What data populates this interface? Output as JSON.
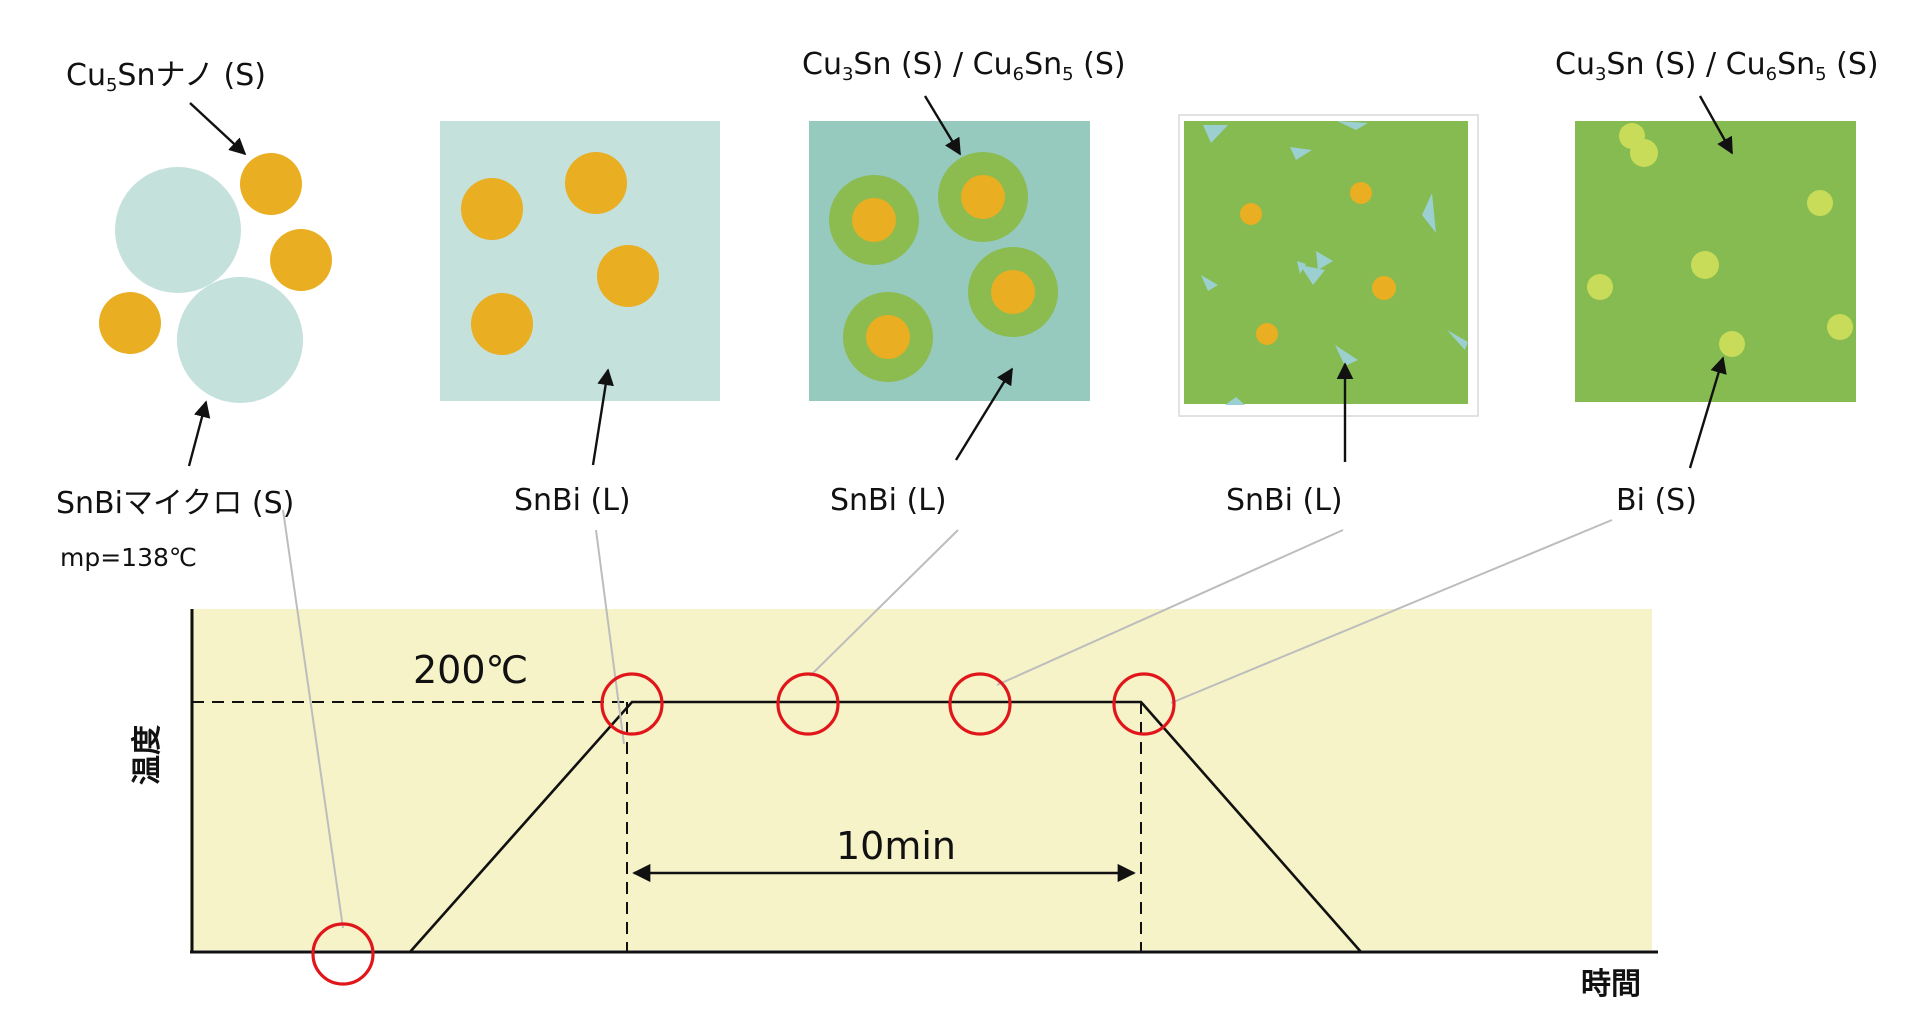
{
  "colors": {
    "nano_particle": "#E9AE22",
    "micro_particle": "#C5E1DC",
    "liquid_bg": "#C5E1DC",
    "liquid_bg_dark": "#96CABE",
    "imc_ring": "#8CBB4F",
    "imc_matrix": "#85BB50",
    "bi_particle": "#C9DC5A",
    "bi_fragment": "#9CCFD0",
    "chart_bg": "#F6F3C8",
    "marker": "#E0161B",
    "leader_line": "#BDBDBD"
  },
  "stage_labels": {
    "nano_label": {
      "base": "Cu",
      "sub": "5",
      "rest": "Snナノ (S)"
    },
    "micro_label": "SnBiマイクロ (S)",
    "melting_point": "mp=138℃",
    "stage2_label": "SnBi (L)",
    "stage3_label": "SnBi (L)",
    "stage4_label": "SnBi (L)",
    "stage5_label": "Bi (S)",
    "imc_label_a": {
      "p1": "Cu",
      "s1": "3",
      "p2": "Sn (S) / Cu",
      "s2": "6",
      "p3": "Sn",
      "s3": "5",
      "p4": " (S)"
    },
    "imc_label_b": {
      "p1": "Cu",
      "s1": "3",
      "p2": "Sn (S) / Cu",
      "s2": "6",
      "p3": "Sn",
      "s3": "5",
      "p4": " (S)"
    }
  },
  "chart_data": {
    "type": "line",
    "profile": "heating ramp, 200℃ hold for 10min, cooling ramp",
    "temperature_label": "200℃",
    "hold_label": "10min",
    "hold_minutes": 10,
    "hold_temperature_c": 200,
    "y_axis_label": "温度",
    "x_axis_label": "時間",
    "marker_count": 5
  }
}
